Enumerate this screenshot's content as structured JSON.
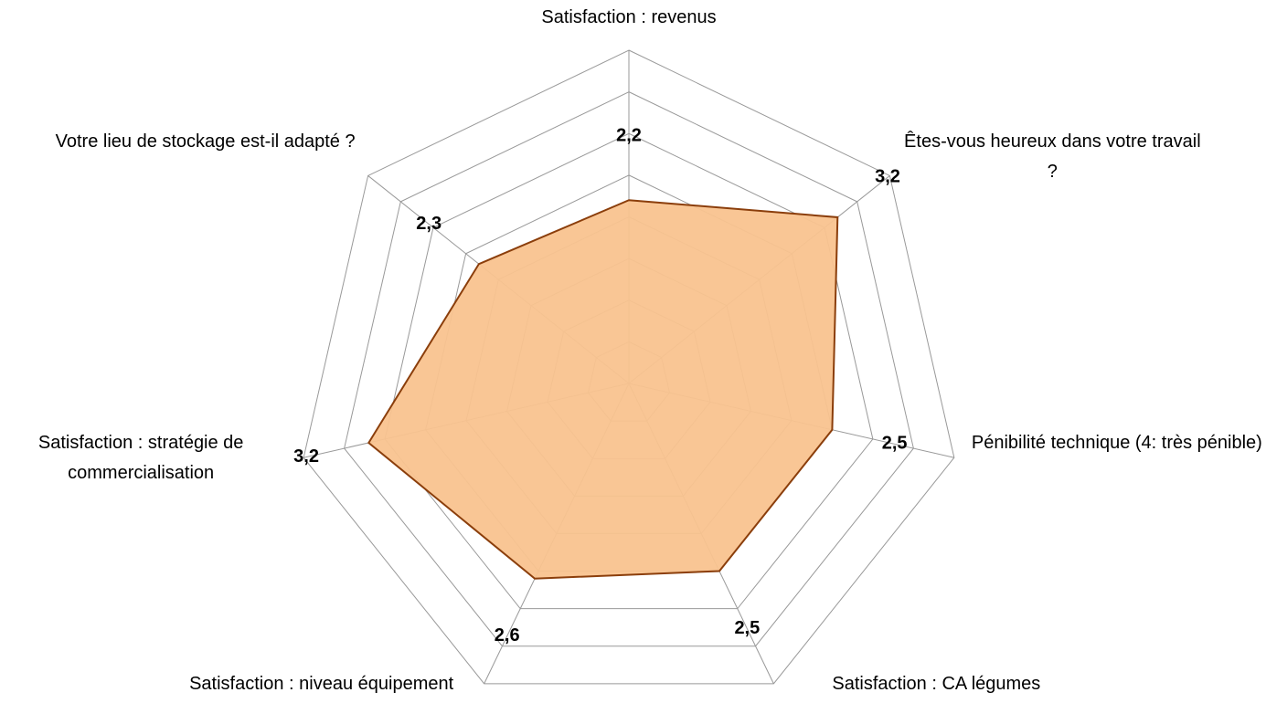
{
  "chart_data": {
    "type": "radar",
    "categories": [
      "Satisfaction : revenus",
      "Êtes-vous heureux dans votre travail ?",
      "Pénibilité technique (4: très pénible)",
      "Satisfaction : CA légumes",
      "Satisfaction : niveau équipement",
      "Satisfaction : stratégie de commercialisation",
      "Votre lieu de stockage est-il adapté ?"
    ],
    "series": [
      {
        "color": "#f9c38f",
        "values": [
          2.2,
          3.2,
          2.5,
          2.5,
          2.6,
          3.2,
          2.3
        ],
        "value_labels": [
          "2,2",
          "3,2",
          "2,5",
          "2,5",
          "2,6",
          "3,2",
          "2,3"
        ]
      }
    ],
    "rlim": [
      0,
      4
    ],
    "rticks": [
      0,
      0.5,
      1,
      1.5,
      2,
      2.5,
      3,
      3.5,
      4
    ],
    "grid": true
  }
}
